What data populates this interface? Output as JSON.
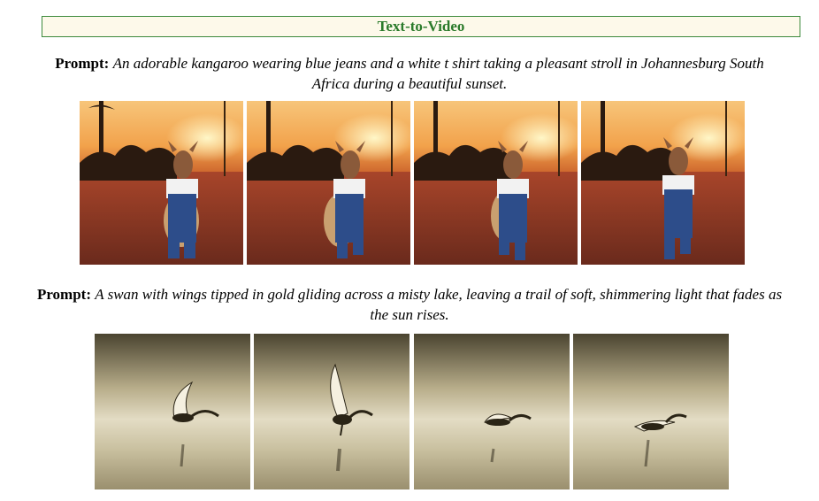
{
  "header": {
    "title": "Text-to-Video"
  },
  "examples": [
    {
      "label": "Prompt:",
      "text": "An adorable kangaroo wearing blue jeans and a white t shirt taking a pleasant stroll in Johannesburg South Africa during a beautiful sunset.",
      "frames": 4
    },
    {
      "label": "Prompt:",
      "text": "A swan with wings tipped in gold gliding across a misty lake, leaving a trail of soft, shimmering light that fades as the sun rises.",
      "frames": 4
    }
  ],
  "colors": {
    "title_text": "#2a7a2a",
    "title_border": "#3d8a3d",
    "title_bg": "#fdf9ea"
  }
}
